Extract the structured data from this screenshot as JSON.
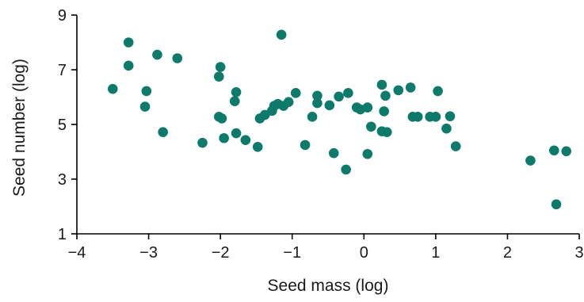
{
  "chart_data": {
    "type": "scatter",
    "xlabel": "Seed mass (log)",
    "ylabel": "Seed number (log)",
    "xlim": [
      -4,
      3
    ],
    "ylim": [
      1,
      9
    ],
    "xticks": [
      -4,
      -3,
      -2,
      -1,
      0,
      1,
      2,
      3
    ],
    "xtick_labels": [
      "−4",
      "−3",
      "−2",
      "−1",
      "0",
      "1",
      "2",
      "3"
    ],
    "yticks": [
      1,
      3,
      5,
      7,
      9
    ],
    "ytick_labels": [
      "1",
      "3",
      "5",
      "7",
      "9"
    ],
    "grid": false,
    "marker_color": "#0e7a6b",
    "points": [
      {
        "x": -3.5,
        "y": 6.3
      },
      {
        "x": -3.28,
        "y": 8.0
      },
      {
        "x": -3.28,
        "y": 7.15
      },
      {
        "x": -3.03,
        "y": 6.22
      },
      {
        "x": -3.05,
        "y": 5.65
      },
      {
        "x": -2.88,
        "y": 7.55
      },
      {
        "x": -2.8,
        "y": 4.72
      },
      {
        "x": -2.6,
        "y": 7.42
      },
      {
        "x": -2.25,
        "y": 4.33
      },
      {
        "x": -2.0,
        "y": 7.1
      },
      {
        "x": -2.02,
        "y": 6.75
      },
      {
        "x": -2.02,
        "y": 5.28
      },
      {
        "x": -1.98,
        "y": 5.22
      },
      {
        "x": -1.95,
        "y": 4.5
      },
      {
        "x": -1.78,
        "y": 6.18
      },
      {
        "x": -1.8,
        "y": 5.85
      },
      {
        "x": -1.78,
        "y": 4.68
      },
      {
        "x": -1.65,
        "y": 4.43
      },
      {
        "x": -1.48,
        "y": 4.18
      },
      {
        "x": -1.45,
        "y": 5.22
      },
      {
        "x": -1.38,
        "y": 5.35
      },
      {
        "x": -1.28,
        "y": 5.5
      },
      {
        "x": -1.25,
        "y": 5.68
      },
      {
        "x": -1.2,
        "y": 5.75
      },
      {
        "x": -1.15,
        "y": 8.28
      },
      {
        "x": -1.12,
        "y": 5.68
      },
      {
        "x": -1.05,
        "y": 5.82
      },
      {
        "x": -0.95,
        "y": 6.15
      },
      {
        "x": -0.82,
        "y": 4.25
      },
      {
        "x": -0.72,
        "y": 5.28
      },
      {
        "x": -0.65,
        "y": 6.05
      },
      {
        "x": -0.65,
        "y": 5.78
      },
      {
        "x": -0.48,
        "y": 5.7
      },
      {
        "x": -0.42,
        "y": 3.95
      },
      {
        "x": -0.35,
        "y": 6.02
      },
      {
        "x": -0.25,
        "y": 3.35
      },
      {
        "x": -0.22,
        "y": 6.15
      },
      {
        "x": -0.1,
        "y": 5.62
      },
      {
        "x": -0.05,
        "y": 5.55
      },
      {
        "x": 0.05,
        "y": 5.62
      },
      {
        "x": 0.05,
        "y": 3.92
      },
      {
        "x": 0.1,
        "y": 4.92
      },
      {
        "x": 0.25,
        "y": 6.45
      },
      {
        "x": 0.3,
        "y": 6.05
      },
      {
        "x": 0.28,
        "y": 5.48
      },
      {
        "x": 0.25,
        "y": 4.75
      },
      {
        "x": 0.32,
        "y": 4.72
      },
      {
        "x": 0.48,
        "y": 6.25
      },
      {
        "x": 0.65,
        "y": 6.35
      },
      {
        "x": 0.68,
        "y": 5.28
      },
      {
        "x": 0.75,
        "y": 5.28
      },
      {
        "x": 0.92,
        "y": 5.28
      },
      {
        "x": 1.0,
        "y": 5.28
      },
      {
        "x": 1.03,
        "y": 6.22
      },
      {
        "x": 1.15,
        "y": 4.85
      },
      {
        "x": 1.2,
        "y": 5.3
      },
      {
        "x": 1.28,
        "y": 4.2
      },
      {
        "x": 2.32,
        "y": 3.68
      },
      {
        "x": 2.65,
        "y": 4.05
      },
      {
        "x": 2.68,
        "y": 2.08
      },
      {
        "x": 2.82,
        "y": 4.02
      }
    ]
  }
}
